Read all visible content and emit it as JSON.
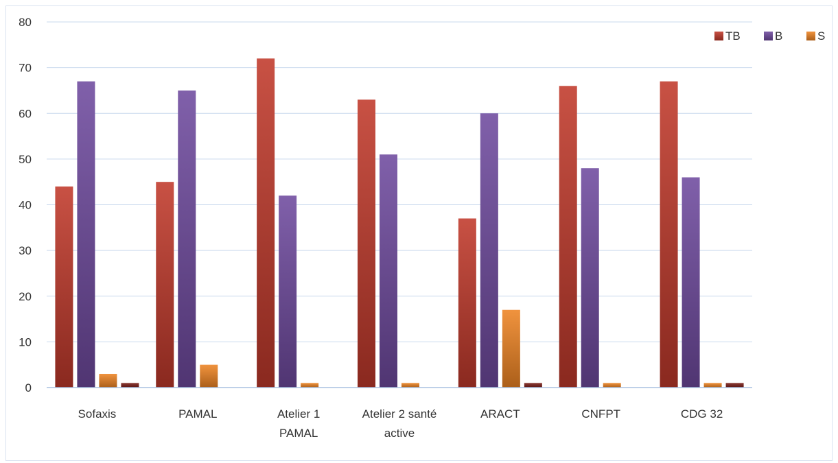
{
  "chart_data": {
    "type": "bar",
    "categories": [
      "Sofaxis",
      "PAMAL",
      "Atelier 1 PAMAL",
      "Atelier 2 santé active",
      "ARACT",
      "CNFPT",
      "CDG 32"
    ],
    "category_lines": [
      [
        "Sofaxis"
      ],
      [
        "PAMAL"
      ],
      [
        "Atelier 1",
        "PAMAL"
      ],
      [
        "Atelier 2 santé",
        "active"
      ],
      [
        "ARACT"
      ],
      [
        "CNFPT"
      ],
      [
        "CDG 32"
      ]
    ],
    "series": [
      {
        "name": "TB",
        "color": "#c0392b",
        "values": [
          44,
          45,
          72,
          63,
          37,
          66,
          67
        ]
      },
      {
        "name": "B",
        "color": "#6f4a9e",
        "values": [
          67,
          65,
          42,
          51,
          60,
          48,
          46
        ]
      },
      {
        "name": "S",
        "color": "#ee8424",
        "values": [
          3,
          5,
          1,
          1,
          17,
          1,
          1
        ]
      },
      {
        "color": "#7b1f1a",
        "values": [
          1,
          0,
          0,
          0,
          1,
          0,
          1
        ]
      }
    ],
    "ylim": [
      0,
      80
    ],
    "yticks": [
      0,
      10,
      20,
      30,
      40,
      50,
      60,
      70,
      80
    ],
    "grid": true,
    "legend_position": "top-right"
  }
}
